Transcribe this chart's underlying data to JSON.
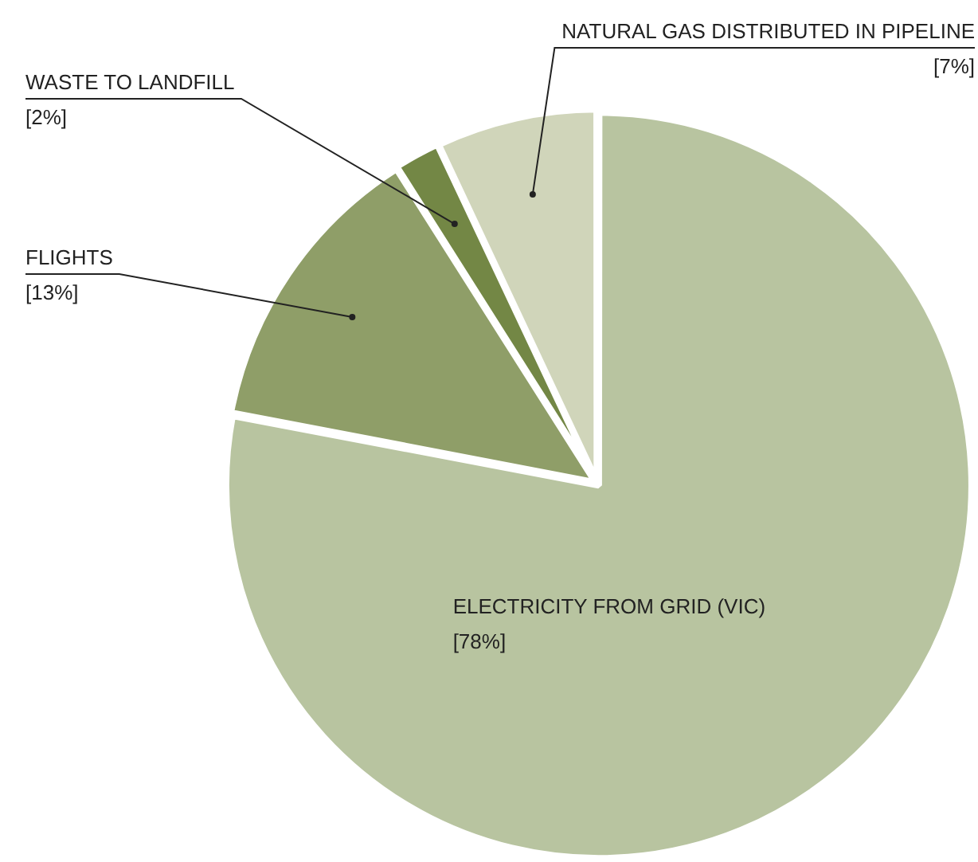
{
  "chart_data": {
    "type": "pie",
    "categories": [
      "ELECTRICITY FROM GRID (VIC)",
      "FLIGHTS",
      "WASTE TO LANDFILL",
      "NATURAL GAS DISTRIBUTED IN PIPELINE"
    ],
    "values": [
      78,
      13,
      2,
      7
    ],
    "colors": [
      "#b8c4a0",
      "#8f9e68",
      "#738745",
      "#d0d5ba"
    ],
    "value_labels": [
      "[78%]",
      "[13%]",
      "[2%]",
      "[7%]"
    ],
    "legend": false
  }
}
